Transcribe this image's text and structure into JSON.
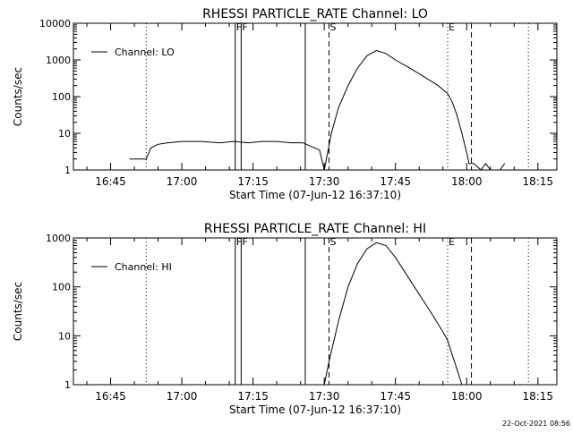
{
  "footer": {
    "timestamp": "22-Oct-2021 08:56"
  },
  "chart_data": [
    {
      "type": "line",
      "title": "RHESSI PARTICLE_RATE Channel: LO",
      "xlabel": "Start Time (07-Jun-12 16:37:10)",
      "ylabel": "Counts/sec",
      "yscale": "log",
      "ylim": [
        1,
        10000
      ],
      "xlim": [
        "16:37:10",
        "18:19:00"
      ],
      "xticks": [
        "16:45",
        "17:00",
        "17:15",
        "17:30",
        "17:45",
        "18:00",
        "18:15"
      ],
      "yticks": [
        "1",
        "10",
        "100",
        "1000",
        "10000"
      ],
      "legend": {
        "label": "Channel: LO",
        "placement": "top-left"
      },
      "markers": [
        {
          "time": "16:52:30",
          "label": "",
          "style": "dotted"
        },
        {
          "time": "17:11:15",
          "label": "F",
          "style": "solid"
        },
        {
          "time": "17:12:30",
          "label": "F",
          "style": "solid"
        },
        {
          "time": "17:26:00",
          "label": "",
          "style": "solid"
        },
        {
          "time": "17:31:00",
          "label": "S",
          "style": "dashed"
        },
        {
          "time": "17:56:00",
          "label": "E",
          "style": "dotted"
        },
        {
          "time": "18:01:00",
          "label": "",
          "style": "dashed"
        },
        {
          "time": "18:13:00",
          "label": "",
          "style": "dotted"
        }
      ],
      "series": [
        {
          "name": "Channel: LO",
          "x": [
            "16:49:00",
            "16:52:00",
            "16:52:30",
            "16:53:30",
            "16:55:00",
            "16:57:00",
            "17:00:00",
            "17:04:00",
            "17:08:00",
            "17:11:00",
            "17:14:00",
            "17:17:00",
            "17:20:00",
            "17:23:00",
            "17:25:30",
            "17:27:00",
            "17:29:00",
            "17:30:00",
            "17:31:30",
            "17:33:00",
            "17:35:00",
            "17:37:00",
            "17:39:00",
            "17:41:00",
            "17:43:00",
            "17:45:00",
            "17:48:00",
            "17:51:00",
            "17:54:00",
            "17:56:00",
            "17:57:00",
            "17:58:00",
            "17:59:00",
            "18:00:00",
            "18:00:30",
            "18:01:30",
            "18:03:00",
            "18:04:00",
            "18:05:00",
            "18:07:00",
            "18:08:00"
          ],
          "values": [
            2,
            2,
            2,
            4,
            5,
            5.5,
            6,
            6,
            5.5,
            6,
            5.5,
            6,
            6,
            5.5,
            5.5,
            4.5,
            3.5,
            1,
            10,
            50,
            200,
            600,
            1300,
            1800,
            1500,
            1000,
            600,
            350,
            200,
            120,
            70,
            30,
            10,
            3,
            1.5,
            1.5,
            1,
            1.5,
            1,
            1,
            1.5
          ]
        }
      ]
    },
    {
      "type": "line",
      "title": "RHESSI PARTICLE_RATE Channel: HI",
      "xlabel": "Start Time (07-Jun-12 16:37:10)",
      "ylabel": "Counts/sec",
      "yscale": "log",
      "ylim": [
        1,
        1000
      ],
      "xlim": [
        "16:37:10",
        "18:19:00"
      ],
      "xticks": [
        "16:45",
        "17:00",
        "17:15",
        "17:30",
        "17:45",
        "18:00",
        "18:15"
      ],
      "yticks": [
        "1",
        "10",
        "100",
        "1000"
      ],
      "legend": {
        "label": "Channel: HI",
        "placement": "top-left"
      },
      "markers": [
        {
          "time": "16:52:30",
          "label": "",
          "style": "dotted"
        },
        {
          "time": "17:11:15",
          "label": "F",
          "style": "solid"
        },
        {
          "time": "17:12:30",
          "label": "F",
          "style": "solid"
        },
        {
          "time": "17:26:00",
          "label": "",
          "style": "solid"
        },
        {
          "time": "17:31:00",
          "label": "S",
          "style": "dashed"
        },
        {
          "time": "17:56:00",
          "label": "E",
          "style": "dotted"
        },
        {
          "time": "18:01:00",
          "label": "",
          "style": "dashed"
        },
        {
          "time": "18:13:00",
          "label": "",
          "style": "dotted"
        }
      ],
      "series": [
        {
          "name": "Channel: HI",
          "x": [
            "17:30:00",
            "17:31:00",
            "17:33:00",
            "17:35:00",
            "17:37:00",
            "17:39:00",
            "17:41:00",
            "17:43:00",
            "17:45:00",
            "17:47:00",
            "17:49:00",
            "17:51:00",
            "17:53:00",
            "17:55:00",
            "17:56:00",
            "17:57:00",
            "17:58:00",
            "17:59:00"
          ],
          "values": [
            1,
            3,
            20,
            100,
            300,
            600,
            800,
            700,
            400,
            200,
            100,
            50,
            25,
            12,
            8,
            4,
            2,
            1
          ]
        }
      ]
    }
  ]
}
